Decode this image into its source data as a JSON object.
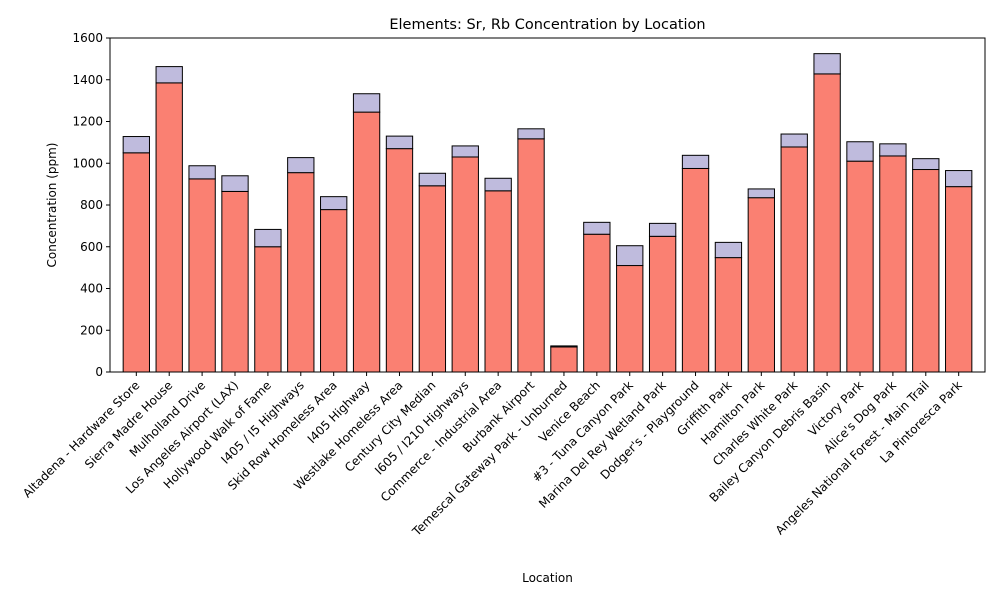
{
  "chart_data": {
    "type": "bar",
    "stacked": true,
    "title": "Elements: Sr, Rb Concentration by Location",
    "xlabel": "Location",
    "ylabel": "Concentration (ppm)",
    "ylim": [
      0,
      1600
    ],
    "yticks": [
      0,
      200,
      400,
      600,
      800,
      1000,
      1200,
      1400,
      1600
    ],
    "grid": false,
    "categories": [
      "Altadena - Hardware Store",
      "Sierra Madre House",
      "Mulholland Drive",
      "Los Angeles Airport (LAX)",
      "Hollywood Walk of Fame",
      "I405 / I5 Highways",
      "Skid Row Homeless Area",
      "I405 Highway",
      "Westlake Homeless Area",
      "Century City Median",
      "I605 / I210 Highways",
      "Commerce - Industrial Area",
      "Burbank Airport",
      "Temescal Gateway Park - Unburned",
      "Venice Beach",
      "#3 - Tuna Canyon Park",
      "Marina Del Rey Wetland Park",
      "Dodger's - Playground",
      "Griffith Park",
      "Hamilton Park",
      "Charles White Park",
      "Bailey Canyon Debris Basin",
      "Victory Park",
      "Alice's Dog Park",
      "Angeles National Forest - Main Trail",
      "La Pintoresca Park"
    ],
    "series": [
      {
        "color": "#fa8072",
        "values": [
          1050,
          1385,
          925,
          865,
          600,
          955,
          778,
          1245,
          1070,
          892,
          1030,
          868,
          1117,
          120,
          660,
          510,
          650,
          975,
          548,
          835,
          1078,
          1428,
          1010,
          1035,
          970,
          888
        ]
      },
      {
        "color": "#bfbbdd",
        "values": [
          78,
          78,
          63,
          75,
          83,
          72,
          62,
          88,
          60,
          60,
          53,
          60,
          48,
          5,
          57,
          95,
          62,
          63,
          73,
          42,
          62,
          97,
          93,
          58,
          52,
          77
        ]
      }
    ]
  }
}
